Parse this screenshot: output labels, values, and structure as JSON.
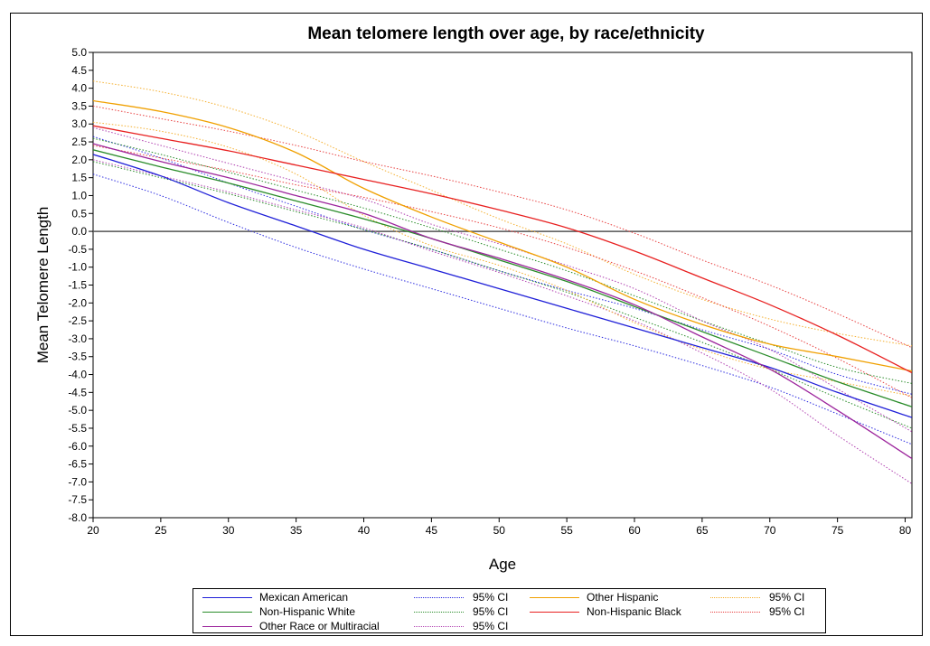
{
  "chart_data": {
    "type": "line",
    "title": "Mean telomere length over age, by race/ethnicity",
    "xlabel": "Age",
    "ylabel": "Mean Telomere Length",
    "xlim": [
      20,
      80.5
    ],
    "ylim": [
      -8.0,
      5.0
    ],
    "xticks": [
      "20",
      "25",
      "30",
      "35",
      "40",
      "45",
      "50",
      "55",
      "60",
      "65",
      "70",
      "75",
      "80"
    ],
    "yticks": [
      "5.0",
      "4.5",
      "4.0",
      "3.5",
      "3.0",
      "2.5",
      "2.0",
      "1.5",
      "1.0",
      "0.5",
      "0.0",
      "-0.5",
      "-1.0",
      "-1.5",
      "-2.0",
      "-2.5",
      "-3.0",
      "-3.5",
      "-4.0",
      "-4.5",
      "-5.0",
      "-5.5",
      "-6.0",
      "-6.5",
      "-7.0",
      "-7.5",
      "-8.0"
    ],
    "reference_line_y": 0,
    "grid": false,
    "legend_position": "bottom",
    "x": [
      20,
      25,
      30,
      35,
      40,
      45,
      50,
      55,
      60,
      65,
      70,
      75,
      80.5
    ],
    "series": [
      {
        "name": "Mexican American",
        "style": "solid",
        "color": "#1f1fd8",
        "values": [
          2.15,
          1.55,
          0.8,
          0.15,
          -0.5,
          -1.05,
          -1.6,
          -2.15,
          -2.7,
          -3.25,
          -3.8,
          -4.5,
          -5.2
        ]
      },
      {
        "name": "95% CI",
        "style": "dotted",
        "color": "#2b2be0",
        "values": [
          1.6,
          1.0,
          0.25,
          -0.45,
          -1.05,
          -1.6,
          -2.15,
          -2.7,
          -3.2,
          -3.75,
          -4.35,
          -5.1,
          -5.95
        ]
      },
      {
        "name": "95% CI",
        "style": "dotted",
        "color": "#2b2be0",
        "values": [
          2.65,
          2.05,
          1.35,
          0.7,
          0.05,
          -0.5,
          -1.1,
          -1.65,
          -2.15,
          -2.75,
          -3.3,
          -4.0,
          -4.55
        ]
      },
      {
        "name": "Non-Hispanic White",
        "style": "solid",
        "color": "#2a8c2a",
        "values": [
          2.28,
          1.8,
          1.35,
          0.85,
          0.35,
          -0.2,
          -0.8,
          -1.4,
          -2.1,
          -2.8,
          -3.5,
          -4.2,
          -4.9
        ]
      },
      {
        "name": "95% CI",
        "style": "dotted",
        "color": "#2a8c2a",
        "values": [
          1.95,
          1.5,
          1.05,
          0.55,
          0.05,
          -0.5,
          -1.1,
          -1.7,
          -2.4,
          -3.1,
          -3.85,
          -4.65,
          -5.5
        ]
      },
      {
        "name": "95% CI",
        "style": "dotted",
        "color": "#2a8c2a",
        "values": [
          2.6,
          2.15,
          1.65,
          1.15,
          0.65,
          0.1,
          -0.5,
          -1.1,
          -1.8,
          -2.5,
          -3.15,
          -3.8,
          -4.25
        ]
      },
      {
        "name": "Other Race or Multiracial",
        "style": "solid",
        "color": "#9c249c",
        "values": [
          2.45,
          1.95,
          1.5,
          1.0,
          0.5,
          -0.2,
          -0.75,
          -1.35,
          -2.05,
          -2.95,
          -3.85,
          -5.0,
          -6.35
        ]
      },
      {
        "name": "95% CI",
        "style": "dotted",
        "color": "#b040b0",
        "values": [
          2.0,
          1.55,
          1.1,
          0.6,
          0.1,
          -0.55,
          -1.15,
          -1.8,
          -2.5,
          -3.4,
          -4.4,
          -5.7,
          -7.05
        ]
      },
      {
        "name": "95% CI",
        "style": "dotted",
        "color": "#b040b0",
        "values": [
          2.9,
          2.4,
          1.9,
          1.4,
          0.9,
          0.2,
          -0.35,
          -0.95,
          -1.6,
          -2.5,
          -3.3,
          -4.4,
          -5.6
        ]
      },
      {
        "name": "Other Hispanic",
        "style": "solid",
        "color": "#f0a000",
        "values": [
          3.65,
          3.35,
          2.9,
          2.2,
          1.2,
          0.4,
          -0.3,
          -1.0,
          -1.9,
          -2.6,
          -3.15,
          -3.5,
          -3.9
        ]
      },
      {
        "name": "95% CI",
        "style": "dotted",
        "color": "#f5b030",
        "values": [
          4.2,
          3.9,
          3.45,
          2.8,
          1.95,
          1.15,
          0.35,
          -0.35,
          -1.2,
          -1.9,
          -2.45,
          -2.85,
          -3.2
        ]
      },
      {
        "name": "95% CI",
        "style": "dotted",
        "color": "#f5b030",
        "values": [
          3.05,
          2.8,
          2.35,
          1.6,
          0.45,
          -0.4,
          -0.95,
          -1.65,
          -2.55,
          -3.3,
          -3.85,
          -4.2,
          -4.6
        ]
      },
      {
        "name": "Non-Hispanic Black",
        "style": "solid",
        "color": "#e82020",
        "values": [
          2.95,
          2.6,
          2.25,
          1.85,
          1.45,
          1.05,
          0.6,
          0.1,
          -0.55,
          -1.3,
          -2.05,
          -2.9,
          -3.95
        ]
      },
      {
        "name": "95% CI",
        "style": "dotted",
        "color": "#e84040",
        "values": [
          3.5,
          3.15,
          2.8,
          2.4,
          1.95,
          1.55,
          1.1,
          0.6,
          -0.05,
          -0.8,
          -1.5,
          -2.3,
          -3.25
        ]
      },
      {
        "name": "95% CI",
        "style": "dotted",
        "color": "#e84040",
        "values": [
          2.4,
          2.05,
          1.7,
          1.3,
          0.95,
          0.55,
          0.1,
          -0.45,
          -1.1,
          -1.85,
          -2.65,
          -3.55,
          -4.65
        ]
      }
    ]
  },
  "legend": {
    "items": [
      {
        "label": "Mexican American",
        "color": "#1f1fd8",
        "style": "solid"
      },
      {
        "label": "95% CI",
        "color": "#2b2be0",
        "style": "dotted"
      },
      {
        "label": "Other Hispanic",
        "color": "#f0a000",
        "style": "solid"
      },
      {
        "label": "95% CI",
        "color": "#f5b030",
        "style": "dotted"
      },
      {
        "label": "Non-Hispanic White",
        "color": "#2a8c2a",
        "style": "solid"
      },
      {
        "label": "95% CI",
        "color": "#2a8c2a",
        "style": "dotted"
      },
      {
        "label": "Non-Hispanic Black",
        "color": "#e82020",
        "style": "solid"
      },
      {
        "label": "95% CI",
        "color": "#e84040",
        "style": "dotted"
      },
      {
        "label": "Other Race or Multiracial",
        "color": "#9c249c",
        "style": "solid"
      },
      {
        "label": "95% CI",
        "color": "#b040b0",
        "style": "dotted"
      }
    ]
  }
}
